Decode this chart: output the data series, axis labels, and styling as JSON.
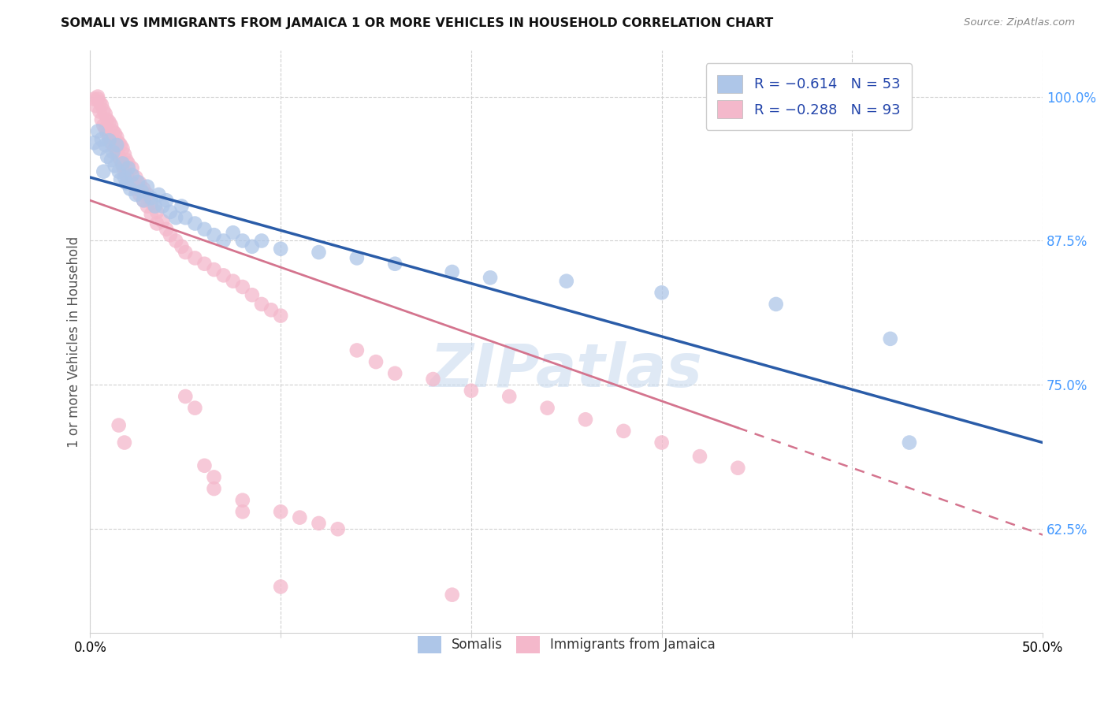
{
  "title": "SOMALI VS IMMIGRANTS FROM JAMAICA 1 OR MORE VEHICLES IN HOUSEHOLD CORRELATION CHART",
  "source": "Source: ZipAtlas.com",
  "ylabel": "1 or more Vehicles in Household",
  "xlim": [
    0.0,
    0.5
  ],
  "ylim": [
    0.535,
    1.04
  ],
  "yticks": [
    0.625,
    0.75,
    0.875,
    1.0
  ],
  "yticklabels": [
    "62.5%",
    "75.0%",
    "87.5%",
    "100.0%"
  ],
  "xticks": [
    0.0,
    0.1,
    0.2,
    0.3,
    0.4,
    0.5
  ],
  "xticklabels": [
    "0.0%",
    "",
    "",
    "",
    "",
    "50.0%"
  ],
  "legend_labels": [
    "R = −0.614   N = 53",
    "R = −0.288   N = 93"
  ],
  "bottom_legend_labels": [
    "Somalis",
    "Immigrants from Jamaica"
  ],
  "somali_color": "#aec6e8",
  "jamaica_color": "#f4b8cb",
  "somali_line_color": "#2a5ca8",
  "jamaica_line_color": "#d4748e",
  "watermark": "ZIPatlas",
  "somali_scatter": [
    [
      0.002,
      0.96
    ],
    [
      0.004,
      0.97
    ],
    [
      0.005,
      0.955
    ],
    [
      0.006,
      0.963
    ],
    [
      0.007,
      0.935
    ],
    [
      0.008,
      0.958
    ],
    [
      0.009,
      0.948
    ],
    [
      0.01,
      0.962
    ],
    [
      0.011,
      0.945
    ],
    [
      0.012,
      0.952
    ],
    [
      0.013,
      0.94
    ],
    [
      0.014,
      0.958
    ],
    [
      0.015,
      0.935
    ],
    [
      0.016,
      0.928
    ],
    [
      0.017,
      0.942
    ],
    [
      0.018,
      0.93
    ],
    [
      0.019,
      0.925
    ],
    [
      0.02,
      0.938
    ],
    [
      0.021,
      0.92
    ],
    [
      0.022,
      0.932
    ],
    [
      0.024,
      0.915
    ],
    [
      0.025,
      0.926
    ],
    [
      0.027,
      0.918
    ],
    [
      0.028,
      0.91
    ],
    [
      0.03,
      0.922
    ],
    [
      0.032,
      0.912
    ],
    [
      0.034,
      0.905
    ],
    [
      0.036,
      0.915
    ],
    [
      0.038,
      0.905
    ],
    [
      0.04,
      0.91
    ],
    [
      0.042,
      0.9
    ],
    [
      0.045,
      0.895
    ],
    [
      0.048,
      0.905
    ],
    [
      0.05,
      0.895
    ],
    [
      0.055,
      0.89
    ],
    [
      0.06,
      0.885
    ],
    [
      0.065,
      0.88
    ],
    [
      0.07,
      0.875
    ],
    [
      0.075,
      0.882
    ],
    [
      0.08,
      0.875
    ],
    [
      0.085,
      0.87
    ],
    [
      0.09,
      0.875
    ],
    [
      0.1,
      0.868
    ],
    [
      0.12,
      0.865
    ],
    [
      0.14,
      0.86
    ],
    [
      0.16,
      0.855
    ],
    [
      0.19,
      0.848
    ],
    [
      0.21,
      0.843
    ],
    [
      0.25,
      0.84
    ],
    [
      0.3,
      0.83
    ],
    [
      0.36,
      0.82
    ],
    [
      0.42,
      0.79
    ],
    [
      0.43,
      0.7
    ]
  ],
  "jamaica_scatter": [
    [
      0.002,
      0.998
    ],
    [
      0.003,
      0.992
    ],
    [
      0.004,
      1.0
    ],
    [
      0.004,
      0.998
    ],
    [
      0.005,
      0.995
    ],
    [
      0.005,
      0.987
    ],
    [
      0.006,
      0.993
    ],
    [
      0.006,
      0.98
    ],
    [
      0.007,
      0.988
    ],
    [
      0.007,
      0.975
    ],
    [
      0.008,
      0.985
    ],
    [
      0.008,
      0.972
    ],
    [
      0.009,
      0.98
    ],
    [
      0.009,
      0.968
    ],
    [
      0.01,
      0.978
    ],
    [
      0.01,
      0.965
    ],
    [
      0.011,
      0.975
    ],
    [
      0.011,
      0.96
    ],
    [
      0.012,
      0.97
    ],
    [
      0.012,
      0.958
    ],
    [
      0.013,
      0.968
    ],
    [
      0.013,
      0.955
    ],
    [
      0.014,
      0.965
    ],
    [
      0.014,
      0.952
    ],
    [
      0.015,
      0.96
    ],
    [
      0.015,
      0.948
    ],
    [
      0.016,
      0.958
    ],
    [
      0.016,
      0.945
    ],
    [
      0.017,
      0.955
    ],
    [
      0.017,
      0.94
    ],
    [
      0.018,
      0.95
    ],
    [
      0.018,
      0.935
    ],
    [
      0.019,
      0.945
    ],
    [
      0.019,
      0.932
    ],
    [
      0.02,
      0.942
    ],
    [
      0.02,
      0.928
    ],
    [
      0.022,
      0.938
    ],
    [
      0.022,
      0.925
    ],
    [
      0.024,
      0.93
    ],
    [
      0.024,
      0.92
    ],
    [
      0.026,
      0.925
    ],
    [
      0.026,
      0.915
    ],
    [
      0.028,
      0.92
    ],
    [
      0.028,
      0.91
    ],
    [
      0.03,
      0.915
    ],
    [
      0.03,
      0.905
    ],
    [
      0.032,
      0.908
    ],
    [
      0.032,
      0.898
    ],
    [
      0.035,
      0.9
    ],
    [
      0.035,
      0.89
    ],
    [
      0.038,
      0.892
    ],
    [
      0.04,
      0.885
    ],
    [
      0.042,
      0.88
    ],
    [
      0.045,
      0.875
    ],
    [
      0.048,
      0.87
    ],
    [
      0.05,
      0.865
    ],
    [
      0.055,
      0.86
    ],
    [
      0.06,
      0.855
    ],
    [
      0.065,
      0.85
    ],
    [
      0.07,
      0.845
    ],
    [
      0.075,
      0.84
    ],
    [
      0.08,
      0.835
    ],
    [
      0.085,
      0.828
    ],
    [
      0.09,
      0.82
    ],
    [
      0.095,
      0.815
    ],
    [
      0.1,
      0.81
    ],
    [
      0.015,
      0.715
    ],
    [
      0.018,
      0.7
    ],
    [
      0.05,
      0.74
    ],
    [
      0.055,
      0.73
    ],
    [
      0.06,
      0.68
    ],
    [
      0.065,
      0.67
    ],
    [
      0.065,
      0.66
    ],
    [
      0.08,
      0.65
    ],
    [
      0.08,
      0.64
    ],
    [
      0.1,
      0.64
    ],
    [
      0.11,
      0.635
    ],
    [
      0.12,
      0.63
    ],
    [
      0.13,
      0.625
    ],
    [
      0.14,
      0.78
    ],
    [
      0.15,
      0.77
    ],
    [
      0.16,
      0.76
    ],
    [
      0.18,
      0.755
    ],
    [
      0.2,
      0.745
    ],
    [
      0.22,
      0.74
    ],
    [
      0.24,
      0.73
    ],
    [
      0.26,
      0.72
    ],
    [
      0.28,
      0.71
    ],
    [
      0.3,
      0.7
    ],
    [
      0.32,
      0.688
    ],
    [
      0.34,
      0.678
    ],
    [
      0.1,
      0.575
    ],
    [
      0.19,
      0.568
    ]
  ]
}
